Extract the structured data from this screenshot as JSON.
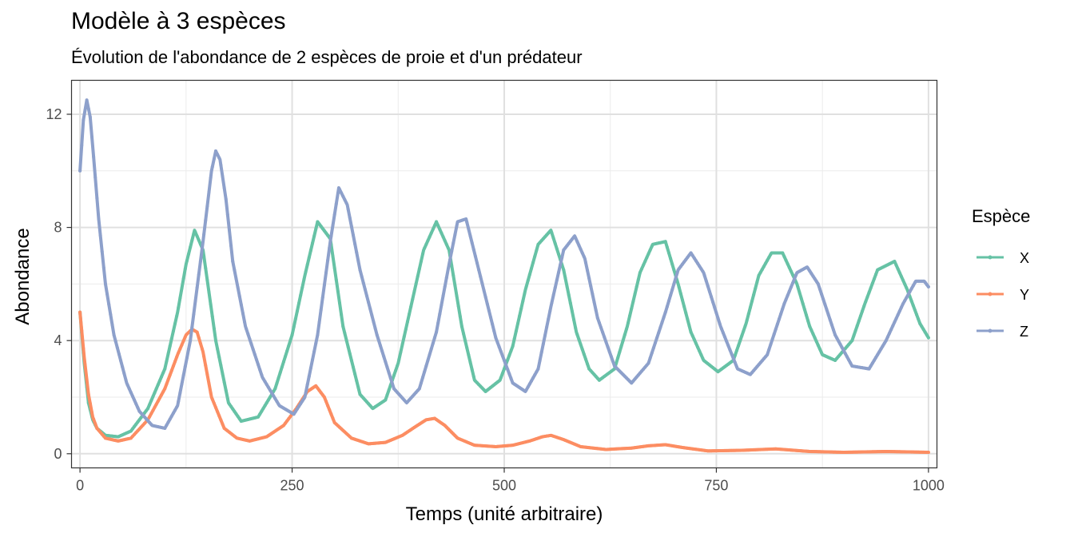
{
  "chart_data": {
    "type": "line",
    "title": "Modèle à 3 espèces",
    "subtitle": "Évolution de l'abondance de 2 espèces de proie et d'un prédateur",
    "xlabel": "Temps (unité arbitraire)",
    "ylabel": "Abondance",
    "xlim": [
      -10,
      1010
    ],
    "ylim": [
      -0.5,
      13.2
    ],
    "x_ticks": [
      0,
      250,
      500,
      750,
      1000
    ],
    "x_tick_labels": [
      "0",
      "250",
      "500",
      "750",
      "1000"
    ],
    "y_ticks": [
      0,
      4,
      8,
      12
    ],
    "y_tick_labels": [
      "0",
      "4",
      "8",
      "12"
    ],
    "grid": true,
    "legend": {
      "title": "Espèce",
      "position": "right"
    },
    "series": [
      {
        "name": "X",
        "color": "#66c2a5",
        "x": [
          0,
          5,
          10,
          15,
          20,
          30,
          45,
          60,
          80,
          100,
          115,
          125,
          135,
          145,
          160,
          175,
          190,
          210,
          230,
          250,
          265,
          280,
          295,
          310,
          330,
          345,
          360,
          375,
          390,
          405,
          420,
          435,
          450,
          465,
          478,
          495,
          510,
          525,
          540,
          555,
          570,
          585,
          600,
          612,
          630,
          645,
          660,
          675,
          690,
          705,
          720,
          735,
          752,
          770,
          785,
          800,
          815,
          828,
          845,
          860,
          875,
          890,
          910,
          925,
          940,
          960,
          975,
          990,
          1000
        ],
        "y": [
          5.0,
          3.2,
          1.8,
          1.2,
          0.9,
          0.65,
          0.6,
          0.8,
          1.6,
          3.0,
          5.0,
          6.7,
          7.9,
          7.2,
          4.0,
          1.8,
          1.15,
          1.3,
          2.3,
          4.2,
          6.3,
          8.2,
          7.6,
          4.5,
          2.1,
          1.6,
          1.9,
          3.2,
          5.2,
          7.2,
          8.2,
          7.2,
          4.5,
          2.6,
          2.2,
          2.6,
          3.8,
          5.8,
          7.4,
          7.9,
          6.5,
          4.3,
          3.0,
          2.6,
          3.0,
          4.5,
          6.4,
          7.4,
          7.5,
          6.0,
          4.3,
          3.3,
          2.9,
          3.3,
          4.6,
          6.3,
          7.1,
          7.1,
          6.0,
          4.5,
          3.5,
          3.3,
          4.0,
          5.3,
          6.5,
          6.8,
          5.8,
          4.6,
          4.1
        ]
      },
      {
        "name": "Y",
        "color": "#fc8d62",
        "x": [
          0,
          5,
          10,
          15,
          20,
          30,
          45,
          60,
          80,
          100,
          115,
          125,
          132,
          138,
          145,
          155,
          170,
          185,
          200,
          220,
          240,
          255,
          268,
          278,
          288,
          300,
          320,
          340,
          360,
          380,
          395,
          408,
          418,
          430,
          445,
          465,
          490,
          510,
          530,
          545,
          555,
          570,
          590,
          620,
          650,
          670,
          690,
          710,
          740,
          780,
          820,
          860,
          900,
          950,
          1000
        ],
        "y": [
          5.0,
          3.4,
          2.1,
          1.3,
          0.9,
          0.55,
          0.45,
          0.55,
          1.2,
          2.3,
          3.5,
          4.2,
          4.4,
          4.3,
          3.6,
          2.0,
          0.9,
          0.55,
          0.45,
          0.6,
          1.0,
          1.6,
          2.2,
          2.4,
          2.0,
          1.1,
          0.55,
          0.35,
          0.4,
          0.65,
          0.95,
          1.2,
          1.25,
          1.0,
          0.55,
          0.3,
          0.25,
          0.3,
          0.45,
          0.6,
          0.65,
          0.5,
          0.25,
          0.15,
          0.2,
          0.28,
          0.32,
          0.22,
          0.1,
          0.12,
          0.17,
          0.08,
          0.05,
          0.08,
          0.05
        ]
      },
      {
        "name": "Z",
        "color": "#8da0cb",
        "x": [
          0,
          4,
          8,
          12,
          16,
          22,
          30,
          40,
          55,
          70,
          85,
          100,
          115,
          130,
          145,
          155,
          160,
          165,
          172,
          180,
          195,
          215,
          235,
          252,
          265,
          280,
          295,
          305,
          315,
          330,
          350,
          370,
          385,
          400,
          420,
          435,
          445,
          455,
          470,
          490,
          510,
          525,
          540,
          555,
          570,
          583,
          595,
          610,
          630,
          650,
          670,
          690,
          705,
          720,
          735,
          755,
          775,
          790,
          810,
          830,
          845,
          857,
          870,
          890,
          910,
          930,
          950,
          970,
          985,
          995,
          1000
        ],
        "y": [
          10.0,
          11.8,
          12.5,
          11.9,
          10.5,
          8.3,
          6.0,
          4.2,
          2.5,
          1.5,
          1.0,
          0.9,
          1.7,
          4.0,
          7.5,
          10.0,
          10.7,
          10.4,
          9.0,
          6.8,
          4.5,
          2.7,
          1.7,
          1.4,
          2.0,
          4.2,
          7.5,
          9.4,
          8.8,
          6.5,
          4.2,
          2.3,
          1.8,
          2.3,
          4.3,
          6.7,
          8.2,
          8.3,
          6.5,
          4.1,
          2.5,
          2.2,
          3.0,
          5.2,
          7.2,
          7.7,
          6.9,
          4.8,
          3.1,
          2.5,
          3.2,
          5.0,
          6.5,
          7.1,
          6.4,
          4.5,
          3.0,
          2.8,
          3.5,
          5.3,
          6.4,
          6.6,
          6.0,
          4.2,
          3.1,
          3.0,
          4.0,
          5.3,
          6.1,
          6.1,
          5.9
        ]
      }
    ]
  }
}
